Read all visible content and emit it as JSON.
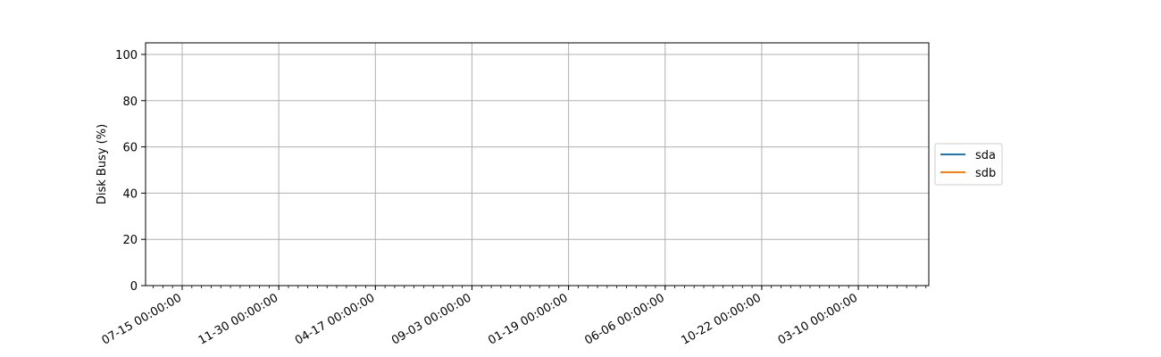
{
  "chart_data": {
    "type": "line",
    "title": "",
    "xlabel": "",
    "ylabel": "Disk Busy (%)",
    "ylim": [
      0,
      105
    ],
    "y_ticks": [
      0,
      20,
      40,
      60,
      80,
      100
    ],
    "x_tick_labels": [
      "07-15 00:00:00",
      "11-30 00:00:00",
      "04-17 00:00:00",
      "09-03 00:00:00",
      "01-19 00:00:00",
      "06-06 00:00:00",
      "10-22 00:00:00",
      "03-10 00:00:00"
    ],
    "grid": true,
    "legend_position": "center-right outside",
    "series": [
      {
        "name": "sda",
        "color": "#1f77b4",
        "values": []
      },
      {
        "name": "sdb",
        "color": "#ff7f0e",
        "values": []
      }
    ]
  }
}
